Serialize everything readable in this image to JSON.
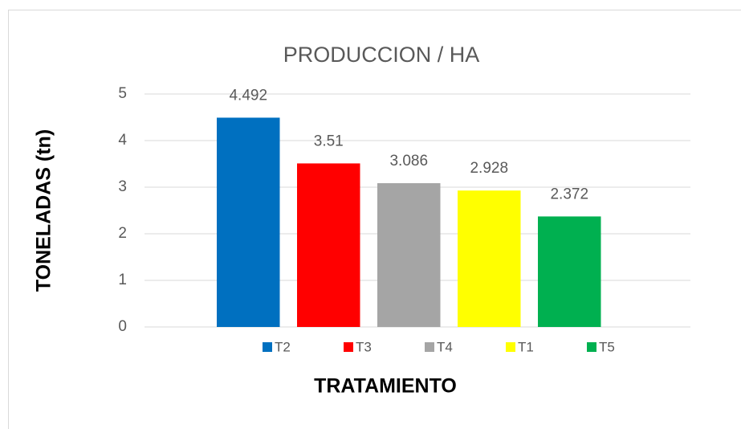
{
  "chart_data": {
    "type": "bar",
    "title": "PRODUCCION / HA",
    "y_label": "TONELADAS (tn)",
    "x_label": "TRATAMIENTO",
    "series": [
      {
        "name": "T2",
        "color": "#0070c0",
        "values": [
          4.492
        ]
      },
      {
        "name": "T3",
        "color": "#ff0000",
        "values": [
          3.51
        ]
      },
      {
        "name": "T4",
        "color": "#a5a5a5",
        "values": [
          3.086
        ]
      },
      {
        "name": "T1",
        "color": "#ffff00",
        "values": [
          2.928
        ]
      },
      {
        "name": "T5",
        "color": "#00b050",
        "values": [
          2.372
        ]
      }
    ],
    "ylim": [
      0,
      5
    ],
    "yticks": [
      0,
      1,
      2,
      3,
      4,
      5
    ],
    "grid": true,
    "legend": "bottom"
  }
}
